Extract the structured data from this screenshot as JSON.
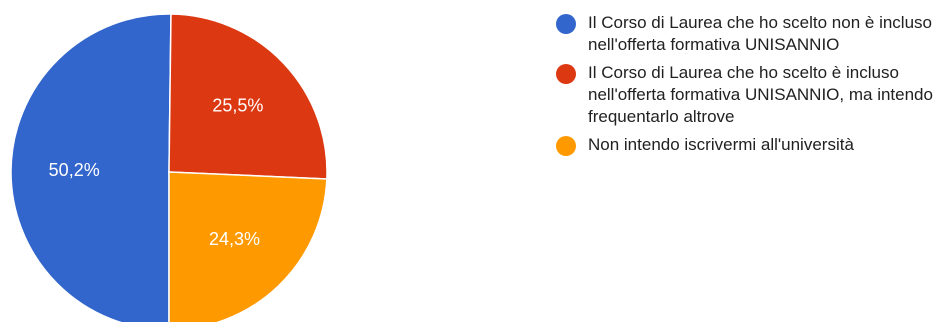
{
  "chart_data": {
    "type": "pie",
    "slices": [
      {
        "label": "Il Corso di Laurea che ho scelto non è incluso nell'offerta formativa UNISANNIO",
        "value": 50.2,
        "display": "50,2%",
        "color": "#3366cc"
      },
      {
        "label": "Il Corso di Laurea che ho scelto è incluso nell'offerta formativa UNISANNIO, ma intendo frequentarlo altrove",
        "value": 25.5,
        "display": "25,5%",
        "color": "#dc3912"
      },
      {
        "label": "Non intendo iscrivermi all'università",
        "value": 24.3,
        "display": "24,3%",
        "color": "#ff9900"
      }
    ],
    "legend_position": "right"
  }
}
